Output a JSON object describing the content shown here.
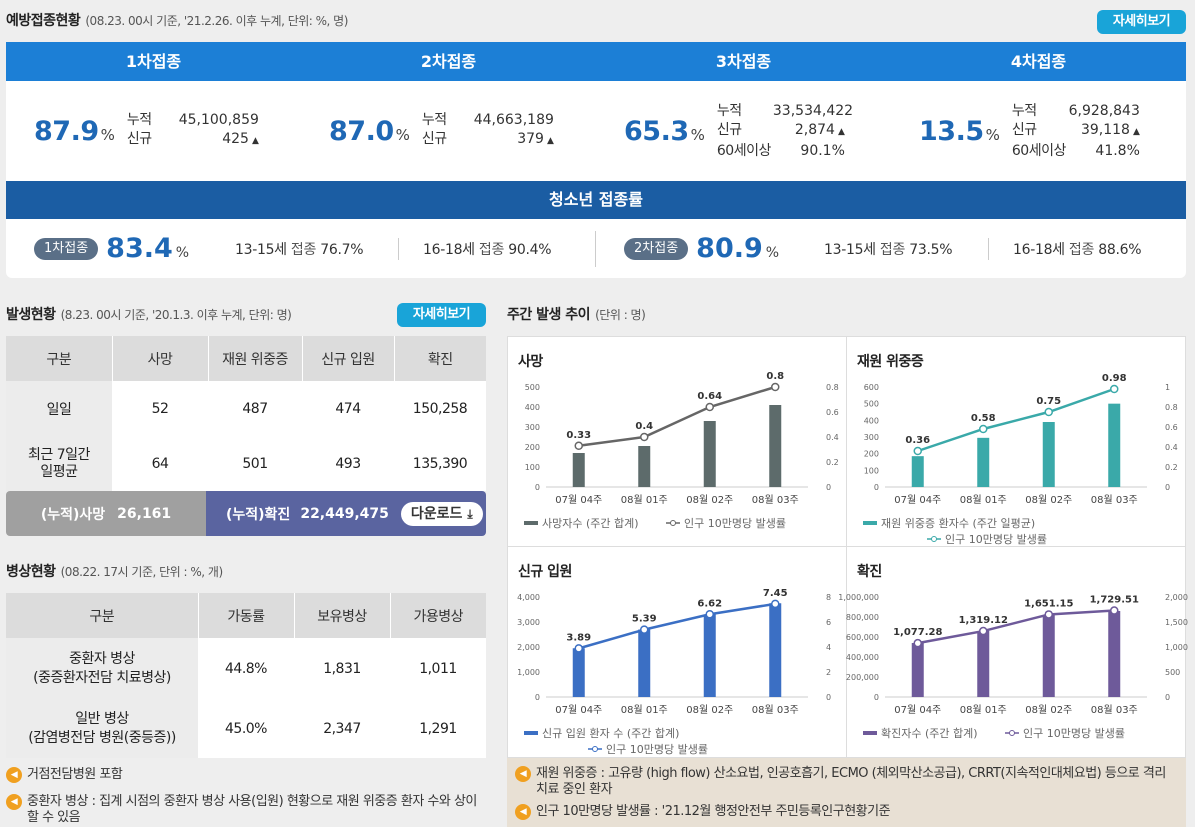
{
  "vaccination": {
    "title": "예방접종현황",
    "subtitle": "(08.23. 00시 기준, '21.2.26. 이후 누계, 단위: %, 명)",
    "detail_btn": "자세히보기",
    "doses": [
      {
        "label": "1차접종",
        "rate": "87.9",
        "unit": "%",
        "k1": "누적",
        "v1": "45,100,859",
        "k2": "신규",
        "v2": "425"
      },
      {
        "label": "2차접종",
        "rate": "87.0",
        "unit": "%",
        "k1": "누적",
        "v1": "44,663,189",
        "k2": "신규",
        "v2": "379"
      },
      {
        "label": "3차접종",
        "rate": "65.3",
        "unit": "%",
        "k1": "누적",
        "v1": "33,534,422",
        "k2": "신규",
        "v2": "2,874",
        "k3": "60세이상",
        "v3": "90.1%"
      },
      {
        "label": "4차접종",
        "rate": "13.5",
        "unit": "%",
        "k1": "누적",
        "v1": "6,928,843",
        "k2": "신규",
        "v2": "39,118",
        "k3": "60세이상",
        "v3": "41.8%"
      }
    ],
    "teen": {
      "title": "청소년 접종률",
      "first": {
        "badge": "1차접종",
        "rate": "83.4",
        "unit": "%",
        "a_age": "13-15세",
        "a_lbl": "접종",
        "a_val": "76.7%",
        "b_age": "16-18세",
        "b_lbl": "접종",
        "b_val": "90.4%"
      },
      "second": {
        "badge": "2차접종",
        "rate": "80.9",
        "unit": "%",
        "a_age": "13-15세",
        "a_lbl": "접종",
        "a_val": "73.5%",
        "b_age": "16-18세",
        "b_lbl": "접종",
        "b_val": "88.6%"
      }
    }
  },
  "occurrence": {
    "title": "발생현황",
    "subtitle": "(8.23. 00시 기준, '20.1.3. 이후 누계, 단위: 명)",
    "detail_btn": "자세히보기",
    "headers": [
      "구분",
      "사망",
      "재원 위중증",
      "신규 입원",
      "확진"
    ],
    "rows": [
      {
        "label": "일일",
        "label2": "",
        "values": [
          "52",
          "487",
          "474",
          "150,258"
        ]
      },
      {
        "label": "최근 7일간",
        "label2": "일평균",
        "values": [
          "64",
          "501",
          "493",
          "135,390"
        ]
      }
    ],
    "cum_death_label": "(누적)사망",
    "cum_death_value": "26,161",
    "cum_confirm_label": "(누적)확진",
    "cum_confirm_value": "22,449,475",
    "download": "다운로드"
  },
  "beds": {
    "title": "병상현황",
    "subtitle": "(08.22. 17시 기준, 단위 : %, 개)",
    "headers": [
      "구분",
      "가동률",
      "보유병상",
      "가용병상"
    ],
    "rows": [
      {
        "label": "중환자 병상",
        "label2": "(중증환자전담 치료병상)",
        "values": [
          "44.8%",
          "1,831",
          "1,011"
        ]
      },
      {
        "label": "일반 병상",
        "label2": "(감염병전담 병원(중등증))",
        "values": [
          "45.0%",
          "2,347",
          "1,291"
        ]
      }
    ],
    "notes": [
      "거점전담병원 포함",
      "중환자 병상 : 집계 시점의 중환자 병상 사용(입원) 현황으로 재원 위중증 환자 수와 상이할 수 있음"
    ]
  },
  "weekly": {
    "title": "주간 발생 추이",
    "subtitle": "(단위 : 명)",
    "notes": [
      "재원 위중증 : 고유량 (high flow) 산소요법, 인공호흡기, ECMO (체외막산소공급), CRRT(지속적인대체요법) 등으로 격리 치료 중인 환자",
      "인구 10만명당 발생률 : '21.12월 행정안전부 주민등록인구현황기준"
    ]
  },
  "chart_data": [
    {
      "type": "bar",
      "title": "사망",
      "categories": [
        "07월 04주",
        "08월 01주",
        "08월 02주",
        "08월 03주"
      ],
      "series": [
        {
          "name": "사망자수 (주간 합계)",
          "values": [
            170,
            205,
            330,
            410
          ],
          "kind": "bar",
          "axis": "left"
        },
        {
          "name": "인구 10만명당 발생률",
          "values": [
            0.33,
            0.4,
            0.64,
            0.8
          ],
          "kind": "line",
          "axis": "right",
          "labels": [
            "0.33",
            "0.4",
            "0.64",
            "0.8"
          ]
        }
      ],
      "yticks_left": [
        "0",
        "100",
        "200",
        "300",
        "400",
        "500"
      ],
      "ylim_left": [
        0,
        500
      ],
      "yticks_right": [
        "0",
        "0.2",
        "0.4",
        "0.6",
        "0.8"
      ],
      "ylim_right": [
        0,
        0.8
      ],
      "colors": {
        "bar": "#5d6b6b",
        "line": "#666666"
      }
    },
    {
      "type": "bar",
      "title": "재원 위중증",
      "categories": [
        "07월 04주",
        "08월 01주",
        "08월 02주",
        "08월 03주"
      ],
      "series": [
        {
          "name": "재원 위중증 환자수 (주간 일평균)",
          "values": [
            185,
            295,
            390,
            500
          ],
          "kind": "bar",
          "axis": "left"
        },
        {
          "name": "인구 10만명당 발생률",
          "values": [
            0.36,
            0.58,
            0.75,
            0.98
          ],
          "kind": "line",
          "axis": "right",
          "labels": [
            "0.36",
            "0.58",
            "0.75",
            "0.98"
          ]
        }
      ],
      "yticks_left": [
        "0",
        "100",
        "200",
        "300",
        "400",
        "500",
        "600"
      ],
      "ylim_left": [
        0,
        600
      ],
      "yticks_right": [
        "0",
        "0.2",
        "0.4",
        "0.6",
        "0.8",
        "1"
      ],
      "ylim_right": [
        0,
        1
      ],
      "colors": {
        "bar": "#3aa9a9",
        "line": "#3aa9a9"
      }
    },
    {
      "type": "bar",
      "title": "신규 입원",
      "categories": [
        "07월 04주",
        "08월 01주",
        "08월 02주",
        "08월 03주"
      ],
      "series": [
        {
          "name": "신규 입원 환자 수 (주간 합계)",
          "values": [
            1950,
            2700,
            3300,
            3750
          ],
          "kind": "bar",
          "axis": "left"
        },
        {
          "name": "인구 10만명당 발생률",
          "values": [
            3.89,
            5.39,
            6.62,
            7.45
          ],
          "kind": "line",
          "axis": "right",
          "labels": [
            "3.89",
            "5.39",
            "6.62",
            "7.45"
          ]
        }
      ],
      "yticks_left": [
        "0",
        "1,000",
        "2,000",
        "3,000",
        "4,000"
      ],
      "ylim_left": [
        0,
        4000
      ],
      "yticks_right": [
        "0",
        "2",
        "4",
        "6",
        "8"
      ],
      "ylim_right": [
        0,
        8
      ],
      "colors": {
        "bar": "#3b6fc4",
        "line": "#3b6fc4"
      }
    },
    {
      "type": "bar",
      "title": "확진",
      "categories": [
        "07월 04주",
        "08월 01주",
        "08월 02주",
        "08월 03주"
      ],
      "series": [
        {
          "name": "확진자수 (주간 합계)",
          "values": [
            540000,
            660000,
            820000,
            860000
          ],
          "kind": "bar",
          "axis": "left"
        },
        {
          "name": "인구 10만명당 발생률",
          "values": [
            1077.28,
            1319.12,
            1651.15,
            1729.51
          ],
          "kind": "line",
          "axis": "right",
          "labels": [
            "1,077.28",
            "1,319.12",
            "1,651.15",
            "1,729.51"
          ]
        }
      ],
      "yticks_left": [
        "0",
        "200,000",
        "400,000",
        "600,000",
        "800,000",
        "1,000,000"
      ],
      "ylim_left": [
        0,
        1000000
      ],
      "yticks_right": [
        "0",
        "500",
        "1,000",
        "1,500",
        "2,000"
      ],
      "ylim_right": [
        0,
        2000
      ],
      "colors": {
        "bar": "#6e5a9a",
        "line": "#6e5a9a"
      }
    }
  ]
}
